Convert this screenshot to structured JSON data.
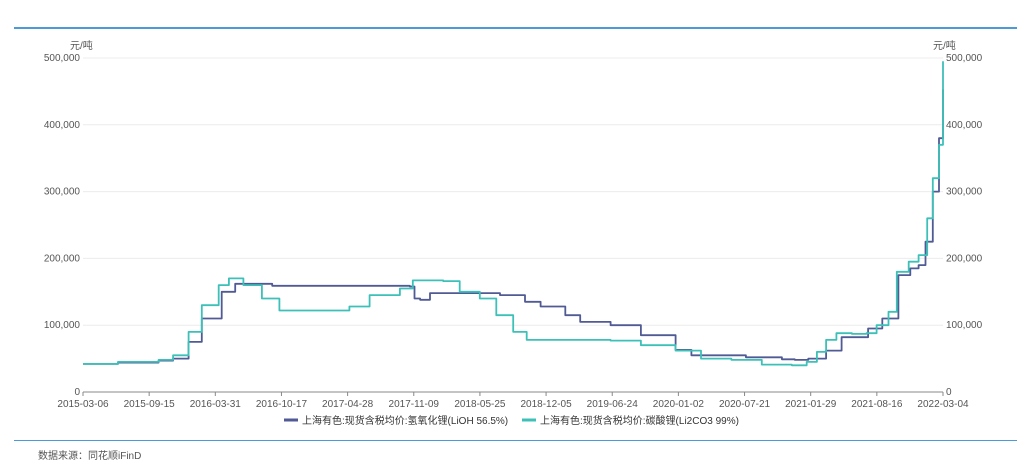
{
  "footer": {
    "source": "数据来源：同花顺iFinD"
  },
  "chart_data": {
    "type": "line",
    "yunit_left": "元/吨",
    "yunit_right": "元/吨",
    "ylim": [
      0,
      500000
    ],
    "yticks": [
      0,
      100000,
      200000,
      300000,
      400000,
      500000
    ],
    "yticks_left": [
      "0",
      "100,000",
      "200,000",
      "300,000",
      "400,000",
      "500,000"
    ],
    "yticks_right": [
      "0",
      "100,000",
      "200,000",
      "300,000",
      "400,000",
      "500,000"
    ],
    "xticks": [
      "2015-03-06",
      "2015-09-15",
      "2016-03-31",
      "2016-10-17",
      "2017-04-28",
      "2017-11-09",
      "2018-05-25",
      "2018-12-05",
      "2019-06-24",
      "2020-01-02",
      "2020-07-21",
      "2021-01-29",
      "2021-08-16",
      "2022-03-04"
    ],
    "xlim": [
      "2015-01-15",
      "2022-03-04"
    ],
    "grid": true,
    "legend_position": "bottom",
    "series": [
      {
        "name": "上海有色:现货含税均价:氢氧化锂(LiOH 56.5%)",
        "color": "#505a94",
        "step": true,
        "x": [
          "2015-01-15",
          "2015-05-01",
          "2015-09-01",
          "2015-10-15",
          "2015-12-01",
          "2016-01-10",
          "2016-03-10",
          "2016-04-20",
          "2016-08-10",
          "2017-10-01",
          "2017-10-15",
          "2017-11-01",
          "2017-12-01",
          "2018-05-20",
          "2018-07-01",
          "2018-09-15",
          "2018-11-01",
          "2019-01-15",
          "2019-03-01",
          "2019-06-01",
          "2019-09-01",
          "2019-12-15",
          "2020-02-01",
          "2020-06-01",
          "2020-07-15",
          "2020-11-01",
          "2020-12-10",
          "2021-01-20",
          "2021-03-15",
          "2021-05-01",
          "2021-07-20",
          "2021-09-01",
          "2021-10-20",
          "2021-11-25",
          "2021-12-20",
          "2022-01-10",
          "2022-02-01",
          "2022-02-20",
          "2022-03-04"
        ],
        "values": [
          42000,
          44000,
          47000,
          50000,
          75000,
          110000,
          150000,
          162000,
          159000,
          158000,
          140000,
          138000,
          148000,
          148000,
          145000,
          135000,
          128000,
          115000,
          105000,
          100000,
          85000,
          63000,
          55000,
          55000,
          52000,
          49000,
          48000,
          50000,
          62000,
          82000,
          95000,
          110000,
          175000,
          185000,
          190000,
          225000,
          300000,
          380000,
          453000
        ]
      },
      {
        "name": "上海有色:现货含税均价:碳酸锂(Li2CO3 99%)",
        "color": "#3cc0b8",
        "step": true,
        "x": [
          "2015-01-15",
          "2015-05-01",
          "2015-09-01",
          "2015-10-15",
          "2015-12-01",
          "2016-01-10",
          "2016-03-01",
          "2016-04-01",
          "2016-05-15",
          "2016-07-10",
          "2016-09-01",
          "2017-04-01",
          "2017-06-01",
          "2017-09-01",
          "2017-10-10",
          "2018-01-10",
          "2018-03-01",
          "2018-05-01",
          "2018-06-20",
          "2018-08-10",
          "2018-09-20",
          "2019-06-01",
          "2019-09-01",
          "2019-12-15",
          "2020-03-01",
          "2020-06-01",
          "2020-09-01",
          "2020-12-01",
          "2021-01-15",
          "2021-02-15",
          "2021-03-15",
          "2021-04-15",
          "2021-06-01",
          "2021-07-15",
          "2021-08-15",
          "2021-09-20",
          "2021-10-15",
          "2021-11-20",
          "2021-12-20",
          "2022-01-15",
          "2022-02-01",
          "2022-02-20",
          "2022-03-04"
        ],
        "values": [
          42000,
          45000,
          48000,
          55000,
          90000,
          130000,
          160000,
          170000,
          160000,
          140000,
          122000,
          128000,
          145000,
          155000,
          167000,
          166000,
          150000,
          140000,
          115000,
          90000,
          78000,
          77000,
          70000,
          62000,
          50000,
          48000,
          41000,
          40000,
          45000,
          60000,
          78000,
          88000,
          87000,
          88000,
          100000,
          120000,
          180000,
          195000,
          205000,
          260000,
          320000,
          370000,
          495000
        ]
      }
    ]
  }
}
